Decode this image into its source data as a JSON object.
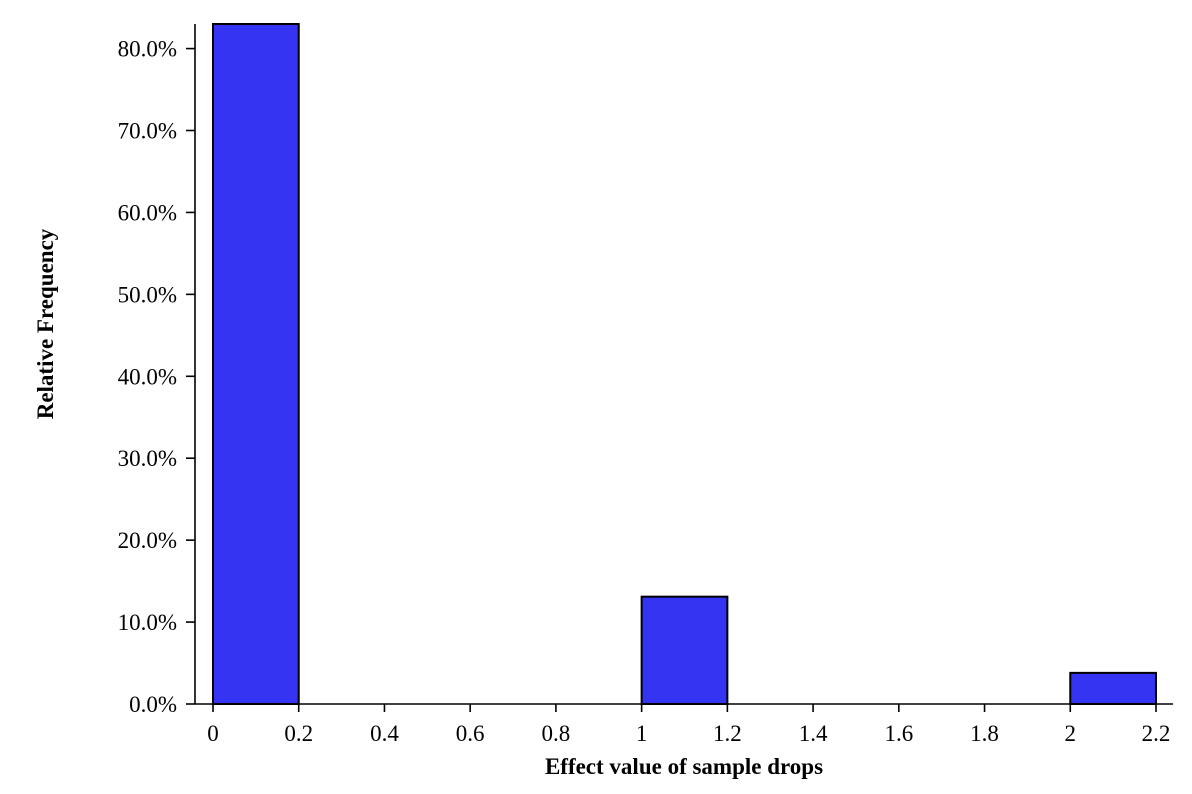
{
  "chart_data": {
    "type": "bar",
    "xlabel": "Effect value of sample drops",
    "ylabel": "Relative Frequency",
    "xlim": [
      0,
      2.2
    ],
    "ylim": [
      0,
      0.83
    ],
    "xticks": [
      0,
      0.2,
      0.4,
      0.6,
      0.8,
      1,
      1.2,
      1.4,
      1.6,
      1.8,
      2,
      2.2
    ],
    "xtick_labels": [
      "0",
      "0.2",
      "0.4",
      "0.6",
      "0.8",
      "1",
      "1.2",
      "1.4",
      "1.6",
      "1.8",
      "2",
      "2.2"
    ],
    "yticks": [
      0,
      0.1,
      0.2,
      0.3,
      0.4,
      0.5,
      0.6,
      0.7,
      0.8
    ],
    "ytick_labels": [
      "0.0%",
      "10.0%",
      "20.0%",
      "30.0%",
      "40.0%",
      "50.0%",
      "60.0%",
      "70.0%",
      "80.0%"
    ],
    "bins": [
      {
        "x0": 0,
        "x1": 0.2,
        "value": 0.83
      },
      {
        "x0": 1.0,
        "x1": 1.2,
        "value": 0.131
      },
      {
        "x0": 2.0,
        "x1": 2.2,
        "value": 0.038
      }
    ],
    "bar_color": "#3434f2",
    "grid": false,
    "legend": "none"
  }
}
